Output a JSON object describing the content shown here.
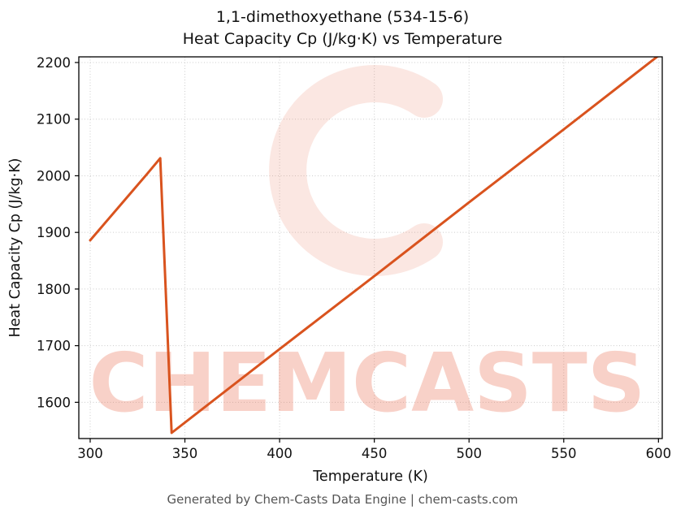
{
  "page": {
    "title_line1": "1,1-dimethoxyethane (534-15-6)",
    "title_line2": "Heat Capacity Cp (J/kg·K) vs Temperature",
    "footer": "Generated by Chem-Casts Data Engine | chem-casts.com"
  },
  "watermark": {
    "text": "CHEMCASTS",
    "color": "#e96a4d",
    "text_opacity": 0.3,
    "logo_opacity": 0.16
  },
  "chart_data": {
    "type": "line",
    "title": "1,1-dimethoxyethane (534-15-6) Heat Capacity Cp (J/kg·K) vs Temperature",
    "xlabel": "Temperature (K)",
    "ylabel": "Heat Capacity Cp (J/kg·K)",
    "xlim": [
      294,
      602
    ],
    "ylim": [
      1536,
      2210
    ],
    "xticks": [
      300,
      350,
      400,
      450,
      500,
      550,
      600
    ],
    "yticks": [
      1600,
      1700,
      1800,
      1900,
      2000,
      2100,
      2200
    ],
    "grid": true,
    "grid_color": "#cccccc",
    "line_color": "#d9531e",
    "line_width": 3,
    "series": [
      {
        "name": "Heat Capacity Cp",
        "points": [
          [
            300,
            1886
          ],
          [
            310,
            1925
          ],
          [
            320,
            1964
          ],
          [
            330,
            2003
          ],
          [
            337,
            2031
          ],
          [
            343,
            1546
          ],
          [
            400,
            1694
          ],
          [
            450,
            1823
          ],
          [
            500,
            1953
          ],
          [
            550,
            2082
          ],
          [
            600,
            2212
          ]
        ]
      }
    ]
  }
}
